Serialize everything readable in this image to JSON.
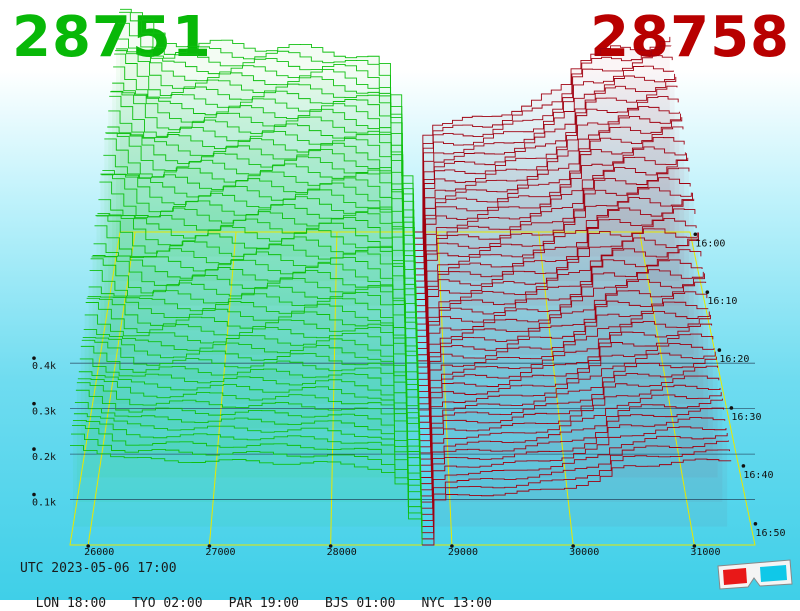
{
  "header": {
    "bid_price": "28751",
    "ask_price": "28758",
    "bid_color": "#08b808",
    "ask_color": "#b80000"
  },
  "chart_data": {
    "type": "area",
    "subtype": "3d-orderbook-depth-waterfall",
    "x_ticks": [
      "26000",
      "27000",
      "28000",
      "29000",
      "30000",
      "31000"
    ],
    "price_range": [
      25850,
      31500
    ],
    "mid_price": 28754,
    "volume_ticks": [
      "0.1k",
      "0.2k",
      "0.3k",
      "0.4k"
    ],
    "volume_range": [
      0,
      0.55
    ],
    "time_ticks": [
      "16:00",
      "16:10",
      "16:20",
      "16:30",
      "16:40",
      "16:50"
    ],
    "bid_color": "#10c010",
    "ask_color": "#a00010",
    "grid_color": "#e8e800",
    "profile": {
      "bid": [
        [
          25850,
          0.49
        ],
        [
          26050,
          0.46
        ],
        [
          26250,
          0.42
        ],
        [
          27000,
          0.41
        ],
        [
          27900,
          0.4
        ],
        [
          28300,
          0.38
        ],
        [
          28500,
          0.35
        ],
        [
          28620,
          0.15
        ],
        [
          28754,
          0.0
        ]
      ],
      "ask": [
        [
          28754,
          0.0
        ],
        [
          28820,
          0.2
        ],
        [
          28900,
          0.24
        ],
        [
          29400,
          0.25
        ],
        [
          29900,
          0.28
        ],
        [
          30200,
          0.32
        ],
        [
          30350,
          0.38
        ],
        [
          30700,
          0.4
        ],
        [
          31300,
          0.42
        ]
      ]
    }
  },
  "footer": {
    "utc": "UTC 2023-05-06 17:00",
    "cities": [
      "LON 18:00",
      "TYO 02:00",
      "PAR 19:00",
      "BJS 01:00",
      "NYC 13:00"
    ]
  }
}
